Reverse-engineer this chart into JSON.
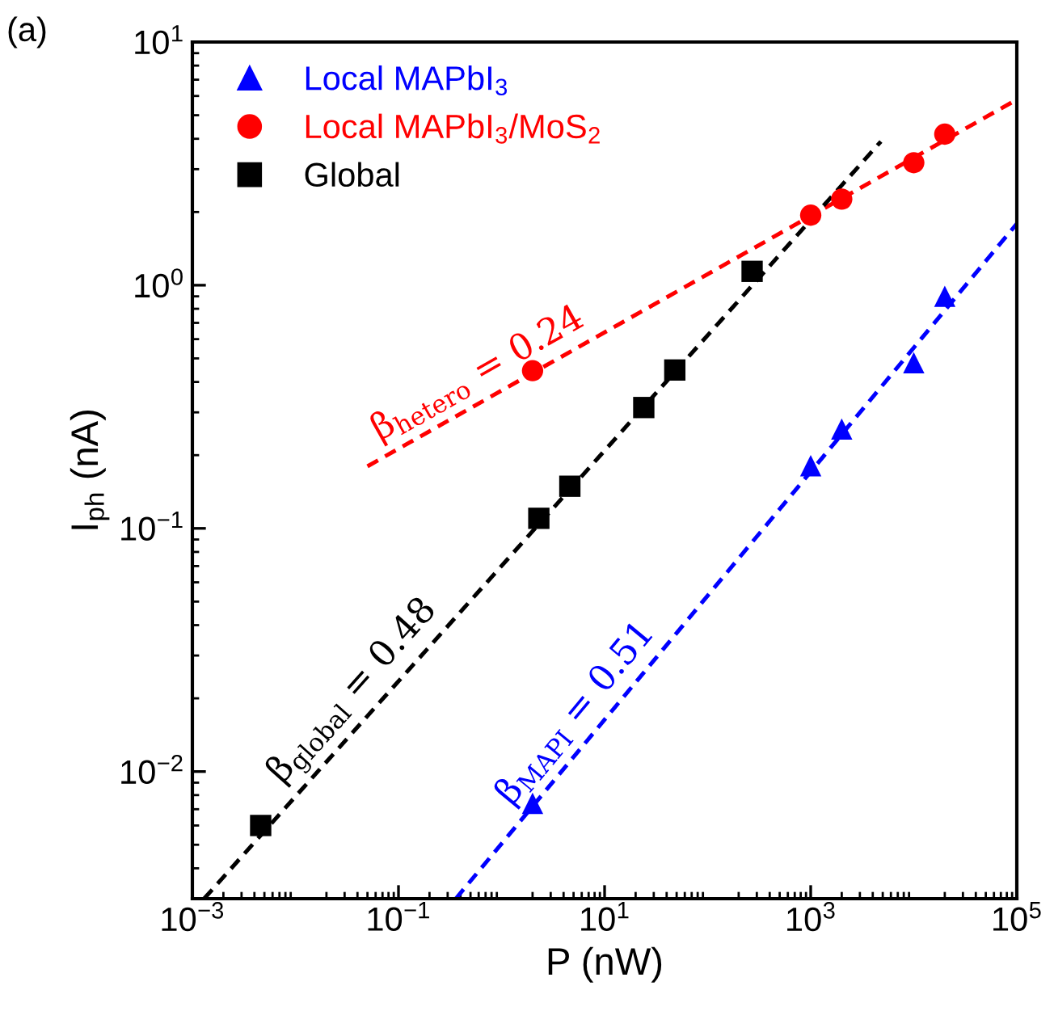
{
  "chart_data": {
    "type": "scatter",
    "xlabel": "P (nW)",
    "ylabel": "I$_{ph}$ (nA)",
    "log": "xy",
    "xlim": [
      0.001,
      100000
    ],
    "ylim": [
      0.003,
      10
    ],
    "xticks": [
      {
        "value": 0.001,
        "label": "10$^{−3}$"
      },
      {
        "value": 0.1,
        "label": "10$^{−1}$"
      },
      {
        "value": 10,
        "label": "10$^{1}$"
      },
      {
        "value": 1000,
        "label": "10$^{3}$"
      },
      {
        "value": 100000,
        "label": "10$^{5}$"
      }
    ],
    "yticks": [
      {
        "value": 0.01,
        "label": "10$^{−2}$"
      },
      {
        "value": 0.1,
        "label": "10$^{−1}$"
      },
      {
        "value": 1,
        "label": "10$^{0}$"
      },
      {
        "value": 10,
        "label": "10$^{1}$"
      }
    ],
    "legend": "top left",
    "grid": false,
    "series": [
      {
        "name": "Local MAPbI$_{3}$",
        "color": "#0000ff",
        "marker": "triangle",
        "x": [
          2,
          1000,
          2000,
          10000,
          20000
        ],
        "values": [
          0.0074,
          0.181,
          0.256,
          0.48,
          0.9
        ]
      },
      {
        "name": "Local MAPbI$_{3}$/MoS$_{2}$",
        "color": "#ff0000",
        "marker": "circle",
        "x": [
          2,
          1000,
          2000,
          10000,
          20000
        ],
        "values": [
          0.445,
          1.94,
          2.26,
          3.19,
          4.18
        ]
      },
      {
        "name": "Global",
        "color": "#000000",
        "marker": "square",
        "x": [
          0.0046,
          2.3,
          4.6,
          24,
          48,
          270
        ],
        "values": [
          0.006,
          0.11,
          0.149,
          0.314,
          0.448,
          1.14
        ]
      },
      {
        "type": "line",
        "color": "#0000ff",
        "line_style": "dashed",
        "marker": "none",
        "x": [
          0.36,
          100000
        ],
        "values": [
          0.003,
          1.79
        ]
      },
      {
        "type": "line",
        "color": "#ff0000",
        "line_style": "dashed",
        "marker": "none",
        "x": [
          0.05,
          100000
        ],
        "values": [
          0.18,
          5.8
        ]
      },
      {
        "type": "line",
        "color": "#000000",
        "line_style": "dashed",
        "marker": "none",
        "x": [
          0.0013,
          4800
        ],
        "values": [
          0.003,
          3.9
        ]
      }
    ],
    "annotations": [
      "β$_{MAPI}$ = 0.51",
      "β$_{hetero}$ = 0.24",
      "β$_{global}$ = 0.48",
      "(a)"
    ]
  }
}
